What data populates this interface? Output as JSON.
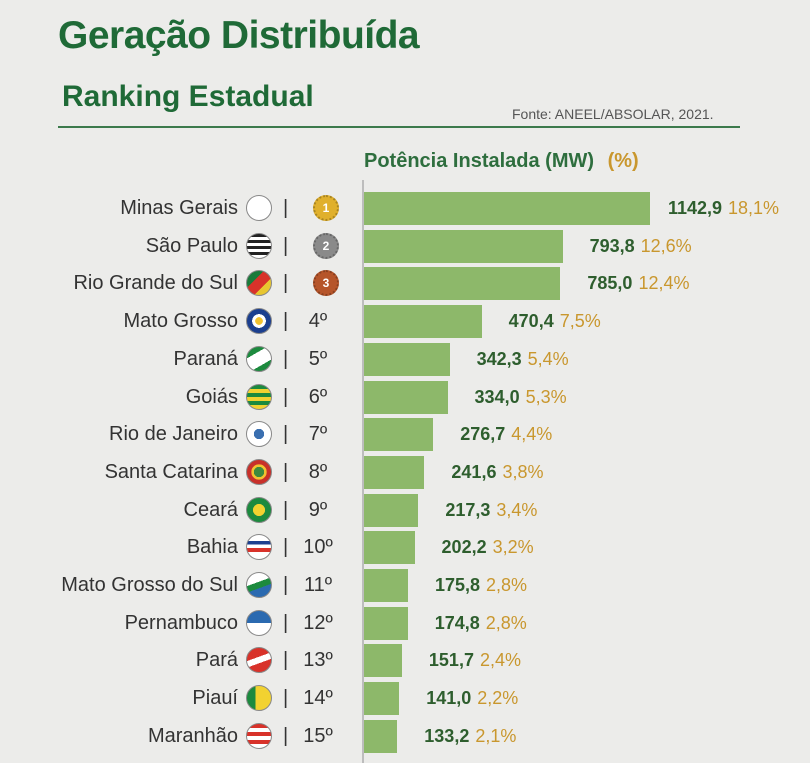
{
  "header": {
    "title": "Geração Distribuída",
    "subtitle": "Ranking Estadual",
    "source": "Fonte: ANEEL/ABSOLAR, 2021."
  },
  "colors": {
    "title": "#1f6a37",
    "bar": "#8db86a",
    "value": "#2e5e2e",
    "percent": "#c9972e",
    "gold": "#e0b02c",
    "silver": "#8a8a8a",
    "bronze": "#b6552a"
  },
  "chart_data": {
    "type": "bar",
    "orientation": "horizontal",
    "title": "Potência Instalada (MW)",
    "percent_label": "(%)",
    "categories": [
      "Minas Gerais",
      "São Paulo",
      "Rio Grande do Sul",
      "Mato Grosso",
      "Paraná",
      "Goiás",
      "Rio de Janeiro",
      "Santa Catarina",
      "Ceará",
      "Bahia",
      "Mato Grosso do Sul",
      "Pernambuco",
      "Pará",
      "Piauí",
      "Maranhão"
    ],
    "values": [
      1142.9,
      793.8,
      785.0,
      470.4,
      342.3,
      334.0,
      276.7,
      241.6,
      217.3,
      202.2,
      175.8,
      174.8,
      151.7,
      141.0,
      133.2
    ],
    "value_labels": [
      "1142,9",
      "793,8",
      "785,0",
      "470,4",
      "342,3",
      "334,0",
      "276,7",
      "241,6",
      "217,3",
      "202,2",
      "175,8",
      "174,8",
      "151,7",
      "141,0",
      "133,2"
    ],
    "percent_labels": [
      "18,1%",
      "12,6%",
      "12,4%",
      "7,5%",
      "5,4%",
      "5,3%",
      "4,4%",
      "3,8%",
      "3,4%",
      "3,2%",
      "2,8%",
      "2,8%",
      "2,4%",
      "2,2%",
      "2,1%"
    ],
    "ranks": [
      "1",
      "2",
      "3",
      "4º",
      "5º",
      "6º",
      "7º",
      "8º",
      "9º",
      "10º",
      "11º",
      "12º",
      "13º",
      "14º",
      "15º"
    ],
    "medal_ranks": [
      1,
      2,
      3
    ],
    "flag_icons": [
      "flag-mg-icon",
      "flag-sp-icon",
      "flag-rs-icon",
      "flag-mt-icon",
      "flag-pr-icon",
      "flag-go-icon",
      "flag-rj-icon",
      "flag-sc-icon",
      "flag-ce-icon",
      "flag-ba-icon",
      "flag-ms-icon",
      "flag-pe-icon",
      "flag-pa-icon",
      "flag-pi-icon",
      "flag-ma-icon"
    ],
    "separator": "|",
    "xlim": [
      0,
      1142.9
    ]
  }
}
